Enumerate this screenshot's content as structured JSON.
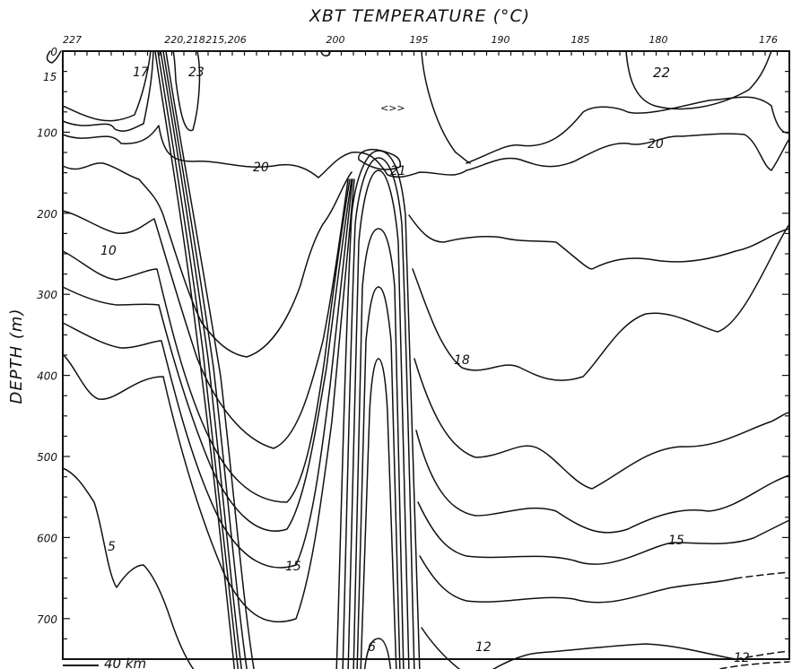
{
  "chart_data": {
    "type": "contour",
    "title": "XBT  TEMPERATURE  (°C)",
    "ylabel": "DEPTH  (m)",
    "scale_bar": "40 km",
    "ylim": [
      0,
      750
    ],
    "y_inverted": true,
    "grid": false,
    "station_labels": [
      "227",
      "220,218",
      "215,206",
      "200",
      "195",
      "190",
      "185",
      "180",
      "176"
    ],
    "depth_ticks": [
      "0",
      "100",
      "200",
      "300",
      "400",
      "500",
      "600",
      "700"
    ],
    "isotherm_labels": [
      "15",
      "17",
      "23",
      "22",
      "<>>",
      "20",
      "20",
      "21",
      "10",
      "18",
      "5",
      "15",
      "15",
      "6",
      "12",
      "12"
    ],
    "contour_levels_c": [
      5,
      6,
      10,
      12,
      15,
      17,
      18,
      20,
      21,
      22,
      23
    ]
  },
  "colors": {
    "ink": "#111111",
    "background": "#ffffff"
  }
}
